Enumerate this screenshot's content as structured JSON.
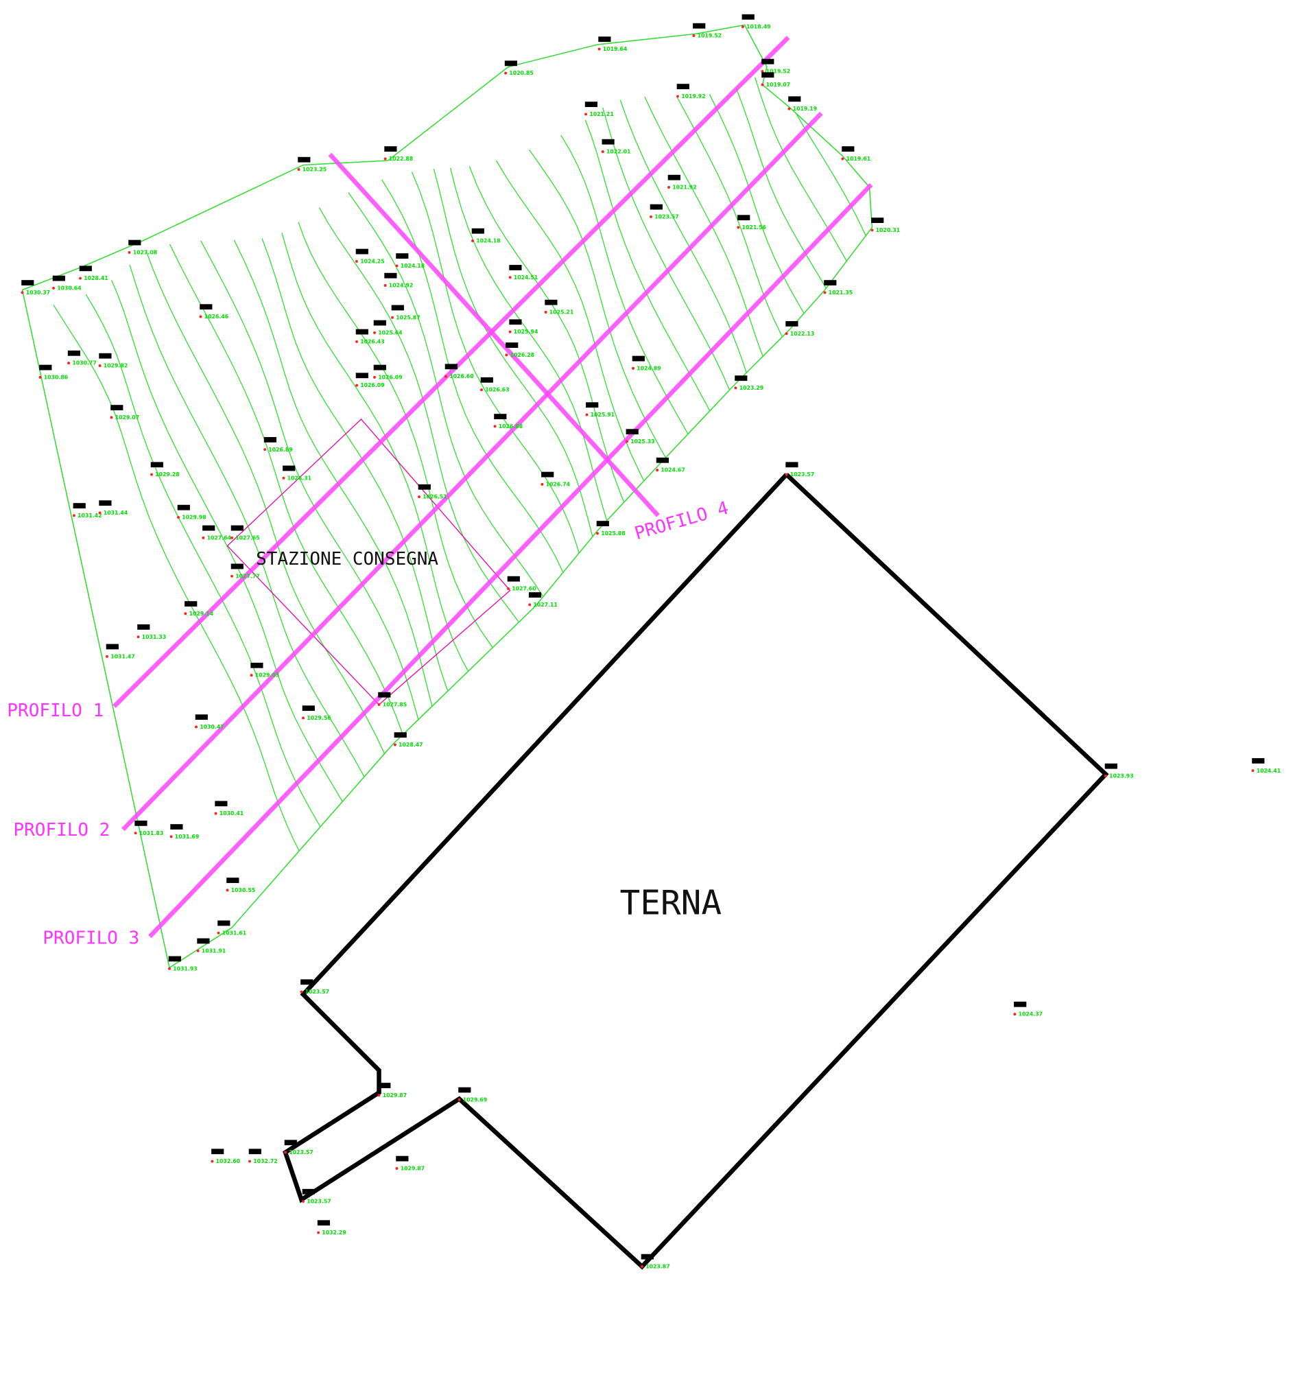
{
  "labels": {
    "profiles": [
      "PROFILO 1",
      "PROFILO 2",
      "PROFILO 3",
      "PROFILO 4"
    ],
    "station": "STAZIONE CONSEGNA",
    "terna": "TERNA"
  },
  "points": [
    "1023.25",
    "1022.88",
    "1020.85",
    "1019.64",
    "1019.52",
    "1018.49",
    "1019.52",
    "1019.07",
    "1019.19",
    "1019.61",
    "1020.31",
    "1019.92",
    "1021.21",
    "1022.01",
    "1021.92",
    "1023.57",
    "1021.56",
    "1021.35",
    "1022.13",
    "1023.29",
    "1024.67",
    "1025.33",
    "1025.91",
    "1024.89",
    "1025.21",
    "1024.51",
    "1024.18",
    "1024.25",
    "1024.18",
    "1024.92",
    "1027.08",
    "1028.41",
    "1030.37",
    "1030.64",
    "1026.46",
    "1025.87",
    "1026.43",
    "1025.64",
    "1026.09",
    "1026.09",
    "1030.77",
    "1029.82",
    "1030.86",
    "1029.07",
    "1029.28",
    "1029.98",
    "1031.42",
    "1031.44",
    "1026.63",
    "1026.60",
    "1026.88",
    "1026.74",
    "1025.88",
    "1026.28",
    "1025.94",
    "1026.89",
    "1026.31",
    "1026.51",
    "1027.65",
    "1027.64",
    "1027.77",
    "1029.14",
    "1031.33",
    "1031.47",
    "1029.03",
    "1030.47",
    "1029.56",
    "1027.85",
    "1028.47",
    "1027.60",
    "1027.11",
    "1030.41",
    "1031.83",
    "1031.69",
    "1030.55",
    "1031.61",
    "1031.91",
    "1031.93",
    "1023.57",
    "1023.93",
    "1024.41",
    "1024.37",
    "1023.57",
    "1029.87",
    "1029.69",
    "1023.57",
    "1032.60",
    "1032.72",
    "1029.87",
    "1023.57",
    "1032.29",
    "1023.87",
    "1027.55"
  ]
}
